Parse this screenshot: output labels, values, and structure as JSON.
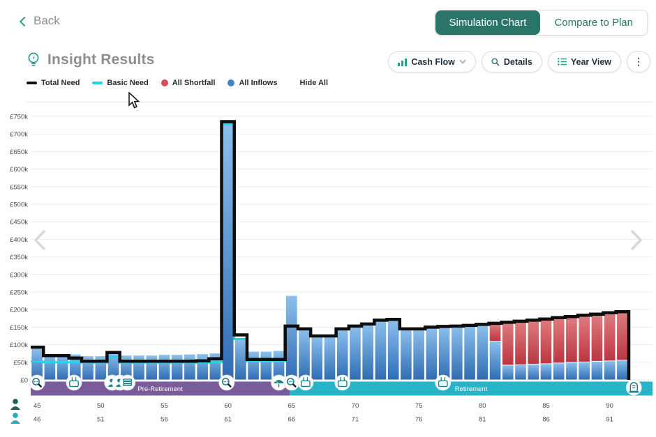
{
  "header": {
    "back_label": "Back",
    "view_toggle": {
      "options": [
        {
          "label": "Simulation Chart",
          "active": true
        },
        {
          "label": "Compare to Plan",
          "active": false
        }
      ]
    }
  },
  "main": {
    "title": "Insight Results",
    "title_icon": "lightbulb-icon"
  },
  "toolbar": {
    "buttons": [
      {
        "label": "Cash Flow",
        "icon": "bar-chart-icon",
        "dropdown": true
      },
      {
        "label": "Details",
        "icon": "magnifier-icon",
        "dropdown": false
      },
      {
        "label": "Year View",
        "icon": "list-view-icon",
        "dropdown": false
      }
    ],
    "overflow_menu_icon": "kebab-menu-icon"
  },
  "legend": {
    "items": [
      {
        "label": "Total Need",
        "swatch": "line",
        "color": "#111111"
      },
      {
        "label": "Basic Need",
        "swatch": "line",
        "color": "#20d5e5"
      },
      {
        "label": "All Shortfall",
        "swatch": "dot",
        "color": "#d5505a"
      },
      {
        "label": "All Inflows",
        "swatch": "dot",
        "color": "#3f86c9"
      }
    ],
    "hide_all_label": "Hide All"
  },
  "chart_data": {
    "type": "bar",
    "stacked": true,
    "currency": "GBP",
    "y_axis": {
      "min": 0,
      "max": 750,
      "grid": true,
      "ticks": [
        {
          "value": 0,
          "label": "£0"
        },
        {
          "value": 50,
          "label": "£50k"
        },
        {
          "value": 100,
          "label": "£100k"
        },
        {
          "value": 150,
          "label": "£150k"
        },
        {
          "value": 200,
          "label": "£200k"
        },
        {
          "value": 250,
          "label": "£250k"
        },
        {
          "value": 300,
          "label": "£300k"
        },
        {
          "value": 350,
          "label": "£350k"
        },
        {
          "value": 400,
          "label": "£400k"
        },
        {
          "value": 450,
          "label": "£450k"
        },
        {
          "value": 500,
          "label": "£500k"
        },
        {
          "value": 550,
          "label": "£550k"
        },
        {
          "value": 600,
          "label": "£600k"
        },
        {
          "value": 650,
          "label": "£650k"
        },
        {
          "value": 700,
          "label": "£700k"
        },
        {
          "value": 750,
          "label": "£750k"
        }
      ]
    },
    "x_axis": {
      "age_start": 45,
      "bar_count": 47,
      "label_rows": [
        {
          "person": "person-1",
          "ages": [
            45,
            50,
            55,
            60,
            65,
            70,
            75,
            80,
            85,
            90
          ]
        },
        {
          "person": "person-2",
          "ages": [
            46,
            51,
            56,
            61,
            66,
            71,
            76,
            81,
            86,
            91
          ]
        }
      ]
    },
    "series": [
      {
        "name": "All Inflows",
        "type": "bar",
        "unit": "GBP_k",
        "values": [
          89,
          73,
          73,
          73,
          68,
          68,
          75,
          70,
          70,
          70,
          72,
          72,
          73,
          74,
          76,
          730,
          119,
          81,
          81,
          83,
          240,
          145,
          125,
          125,
          145,
          153,
          159,
          170,
          172,
          145,
          145,
          150,
          152,
          153,
          155,
          158,
          110,
          42,
          43,
          45,
          46,
          48,
          50,
          51,
          53,
          54,
          56
        ]
      },
      {
        "name": "All Shortfall",
        "type": "bar",
        "unit": "GBP_k",
        "values": [
          0,
          0,
          0,
          0,
          0,
          0,
          0,
          0,
          0,
          0,
          0,
          0,
          0,
          0,
          0,
          0,
          0,
          0,
          0,
          0,
          0,
          0,
          0,
          0,
          0,
          0,
          0,
          0,
          0,
          0,
          0,
          0,
          0,
          0,
          0,
          0,
          51,
          122,
          124,
          125,
          127,
          129,
          130,
          133,
          134,
          137,
          138
        ]
      },
      {
        "name": "Total Need",
        "type": "step-line",
        "unit": "GBP_k",
        "values": [
          93,
          69,
          69,
          62,
          53,
          53,
          78,
          53,
          53,
          53,
          53,
          53,
          53,
          54,
          60,
          735,
          128,
          58,
          58,
          58,
          153,
          145,
          125,
          125,
          145,
          153,
          159,
          170,
          172,
          145,
          145,
          150,
          152,
          153,
          155,
          158,
          161,
          164,
          167,
          170,
          173,
          177,
          180,
          184,
          187,
          191,
          194
        ]
      },
      {
        "name": "Basic Need",
        "type": "step-line",
        "unit": "GBP_k",
        "values": [
          52,
          50,
          50,
          50,
          49,
          49,
          65,
          49,
          49,
          49,
          49,
          49,
          49,
          49,
          51,
          728,
          116,
          53,
          53,
          53,
          153,
          145,
          125,
          125,
          145,
          153,
          159,
          170,
          172,
          145,
          145,
          150,
          152,
          153,
          155,
          158,
          161,
          164,
          167,
          170,
          173,
          177,
          180,
          184,
          187,
          191,
          194
        ]
      }
    ],
    "phases": [
      {
        "label": "Pre-Retirement",
        "start_age": 45,
        "end_age": 65.35,
        "color": "#7a5c9b"
      },
      {
        "label": "Retirement",
        "start_age": 65.35,
        "end_age": 93.9,
        "color": "#28b4c8"
      }
    ],
    "markers": [
      {
        "icon": "zoom-icon",
        "age": 45
      },
      {
        "icon": "birthday-cake-icon",
        "age": 47.9
      },
      {
        "icon": "person-money-icon",
        "age": 50.9
      },
      {
        "icon": "person-money-icon",
        "age": 51.5
      },
      {
        "icon": "cash-stack-icon",
        "age": 52.1
      },
      {
        "icon": "zoom-icon",
        "age": 59.9
      },
      {
        "icon": "umbrella-icon",
        "age": 64.0
      },
      {
        "icon": "zoom-icon",
        "age": 65.0
      },
      {
        "icon": "birthday-cake-icon",
        "age": 66.1
      },
      {
        "icon": "birthday-cake-icon",
        "age": 69.0
      },
      {
        "icon": "birthday-cake-icon",
        "age": 76.9
      },
      {
        "icon": "tombstone-icon",
        "age": 91.9
      }
    ],
    "nav": {
      "prev_arrow": "chevron-left-icon",
      "next_arrow": "chevron-right-icon"
    }
  },
  "colors": {
    "accent_teal": "#2a9d8f",
    "active_button_bg": "#2b7468",
    "bar_blue_top": "#8cc0ec",
    "bar_blue_bottom": "#2f6cb3",
    "bar_red_top": "#de7d81",
    "bar_red_bottom": "#bb3540",
    "total_need_line": "#0d0d0d",
    "basic_need_line": "#20d5e5",
    "pre_retirement_band": "#7a5c9b",
    "retirement_band": "#28b4c8",
    "marker_glyph": "#1a808d",
    "person1": "#1c6159",
    "person2": "#2fa8b8",
    "grid_line": "#ededed",
    "axis_text": "#4d4d4d",
    "nav_arrow": "#d8d8d8"
  }
}
